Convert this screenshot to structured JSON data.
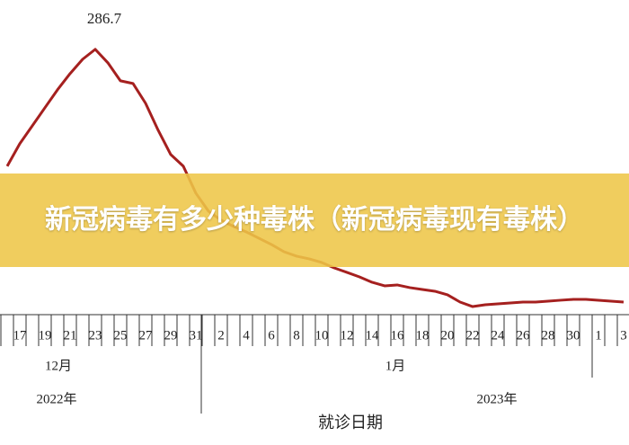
{
  "chart_data": {
    "type": "line",
    "annotation": "286.7",
    "categories": [
      null,
      "17",
      null,
      "19",
      null,
      "21",
      null,
      "23",
      null,
      "25",
      null,
      "27",
      null,
      "29",
      null,
      "31",
      null,
      "2",
      null,
      "4",
      null,
      "6",
      null,
      "8",
      null,
      "10",
      null,
      "12",
      null,
      "14",
      null,
      "16",
      null,
      "18",
      null,
      "20",
      null,
      "22",
      null,
      "24",
      null,
      "26",
      null,
      "28",
      null,
      "30",
      null,
      "1",
      null,
      "3"
    ],
    "series": [
      {
        "color": "#a5201f",
        "values": [
          160.4,
          184.7,
          204.1,
          223.6,
          243,
          260.5,
          276,
          286.7,
          272.2,
          252.7,
          249.8,
          228.4,
          199.3,
          173,
          160.4,
          131.2,
          111.8,
          102.1,
          95.3,
          89.4,
          82.6,
          75.8,
          68,
          63.2,
          60.3,
          56.4,
          50.5,
          45.7,
          40.8,
          35,
          31.1,
          32.1,
          29.2,
          27.2,
          25.3,
          21.4,
          13.6,
          8.7,
          10.7,
          11.7,
          12.6,
          13.6,
          13.6,
          14.6,
          15.6,
          16.5,
          16.5,
          15.6,
          14.6,
          13.6
        ]
      }
    ],
    "ylim": [
      0,
      340
    ],
    "months": [
      "12月",
      "1月"
    ],
    "years": [
      "2022年",
      "2023年"
    ],
    "x_label": "就诊日期"
  },
  "banner": {
    "title": "新冠病毒有多少种毒株（新冠病毒现有毒株）"
  }
}
